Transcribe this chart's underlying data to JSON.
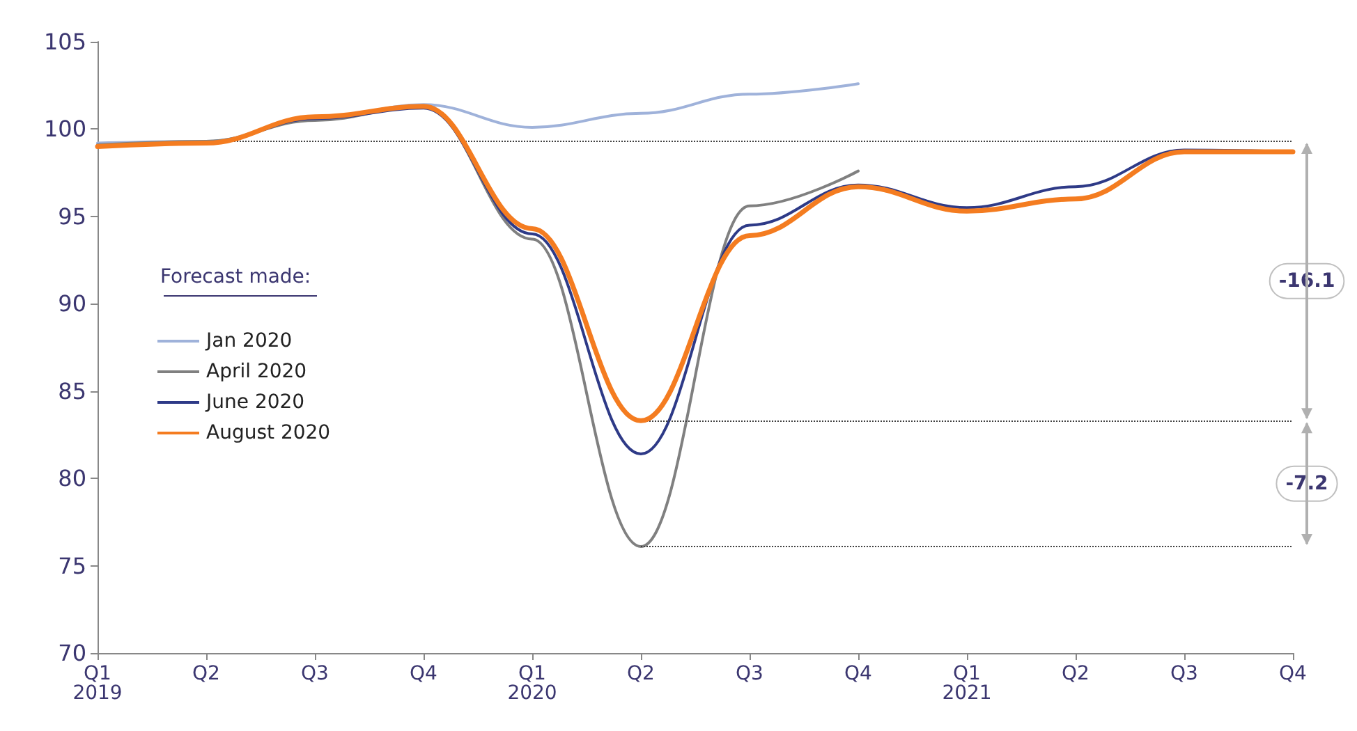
{
  "chart_data": {
    "type": "line",
    "legend_title": "Forecast made:",
    "categories": [
      "Q1\n2019",
      "Q2",
      "Q3",
      "Q4",
      "Q1\n2020",
      "Q2",
      "Q3",
      "Q4",
      "Q1\n2021",
      "Q2",
      "Q3",
      "Q4"
    ],
    "series": [
      {
        "name": "Jan 2020",
        "color": "#9fb2da",
        "values": [
          99.2,
          99.3,
          100.6,
          101.4,
          100.1,
          100.9,
          102.0,
          102.6,
          null,
          null,
          null,
          null
        ]
      },
      {
        "name": "April 2020",
        "color": "#808080",
        "values": [
          99.1,
          99.3,
          100.5,
          101.3,
          93.7,
          76.1,
          95.6,
          97.6,
          null,
          null,
          null,
          null
        ]
      },
      {
        "name": "June 2020",
        "color": "#2e3a87",
        "values": [
          99.0,
          99.2,
          100.6,
          101.2,
          94.0,
          81.4,
          94.5,
          96.8,
          95.5,
          96.7,
          98.8,
          98.7
        ]
      },
      {
        "name": "August 2020",
        "color": "#f47c20",
        "values": [
          99.0,
          99.2,
          100.7,
          101.3,
          94.3,
          83.3,
          93.9,
          96.7,
          95.3,
          96.0,
          98.7,
          98.7
        ]
      }
    ],
    "ylim": [
      70,
      105
    ],
    "yticks": [
      70,
      75,
      80,
      85,
      90,
      95,
      100,
      105
    ],
    "grid": false,
    "legend": "left",
    "marker": "none",
    "line_style": "solid",
    "ref_lines": [
      {
        "axis": "y",
        "value": 99.3,
        "color": "#404040",
        "line_style": "dotted"
      },
      {
        "axis": "y",
        "value": 83.3,
        "color": "#404040",
        "line_style": "dotted"
      },
      {
        "axis": "y",
        "value": 76.1,
        "color": "#404040",
        "line_style": "dotted"
      }
    ],
    "annotations": [
      "-16.1",
      "-7.2"
    ]
  }
}
